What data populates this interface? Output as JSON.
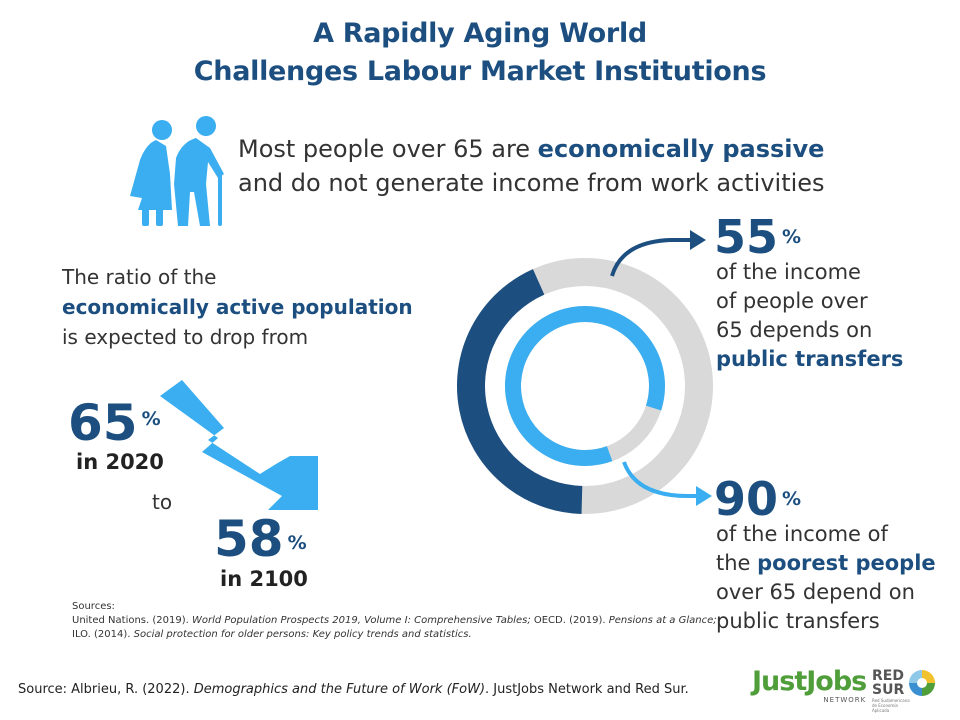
{
  "title": {
    "line1": "A Rapidly Aging World",
    "line2": "Challenges Labour Market Institutions"
  },
  "intro": {
    "part1": "Most people over 65 are ",
    "bold": "economically passive",
    "line2": "and do not generate income from work activities"
  },
  "ratio": {
    "line1": "The ratio of the",
    "line2_bold": "economically active population",
    "line3": "is expected to drop from"
  },
  "stat_2020": {
    "value": "65",
    "unit": "%",
    "label": "in 2020"
  },
  "connector": "to",
  "stat_2100": {
    "value": "58",
    "unit": "%",
    "label": "in 2100"
  },
  "stat_public": {
    "value": "55",
    "unit": "%",
    "lines": [
      "of the income",
      "of people over",
      "65 depends on"
    ],
    "bold": "public transfers",
    "share": 0.55
  },
  "stat_poorest": {
    "value": "90",
    "unit": "%",
    "line1": "of the income of",
    "line2_pre": "the ",
    "line2_bold": "poorest people",
    "line3": "over 65 depend on",
    "line4": "public transfers",
    "share": 0.9
  },
  "sources": {
    "heading": "Sources:",
    "line1_a": "United Nations. (2019). ",
    "line1_i1": "World Population Prospects 2019, Volume I: Comprehensive Tables;",
    "line1_b": " OECD. (2019). ",
    "line1_i2": "Pensions at a Glance;",
    "line2_a": "ILO. (2014). ",
    "line2_i": "Social protection for older persons: Key policy trends and statistics."
  },
  "footer": {
    "pre": "Source: Albrieu, R. (2022). ",
    "italic": "Demographics and the Future of Work (FoW)",
    "post": ". JustJobs Network and Red Sur."
  },
  "logos": {
    "justjobs": "JustJobs",
    "justjobs_sub": "NETWORK",
    "redsur_1": "RED",
    "redsur_2": "SUR",
    "redsur_sub": "Red Sudamericana de Economía Aplicada"
  },
  "colors": {
    "navy": "#1c4f80",
    "light_blue": "#3aaef0",
    "grey": "#d9d9d9",
    "green": "#4f9e3a"
  },
  "icons": [
    "elderly-couple-icon",
    "downward-trend-arrow-icon",
    "curved-arrow-icon"
  ]
}
